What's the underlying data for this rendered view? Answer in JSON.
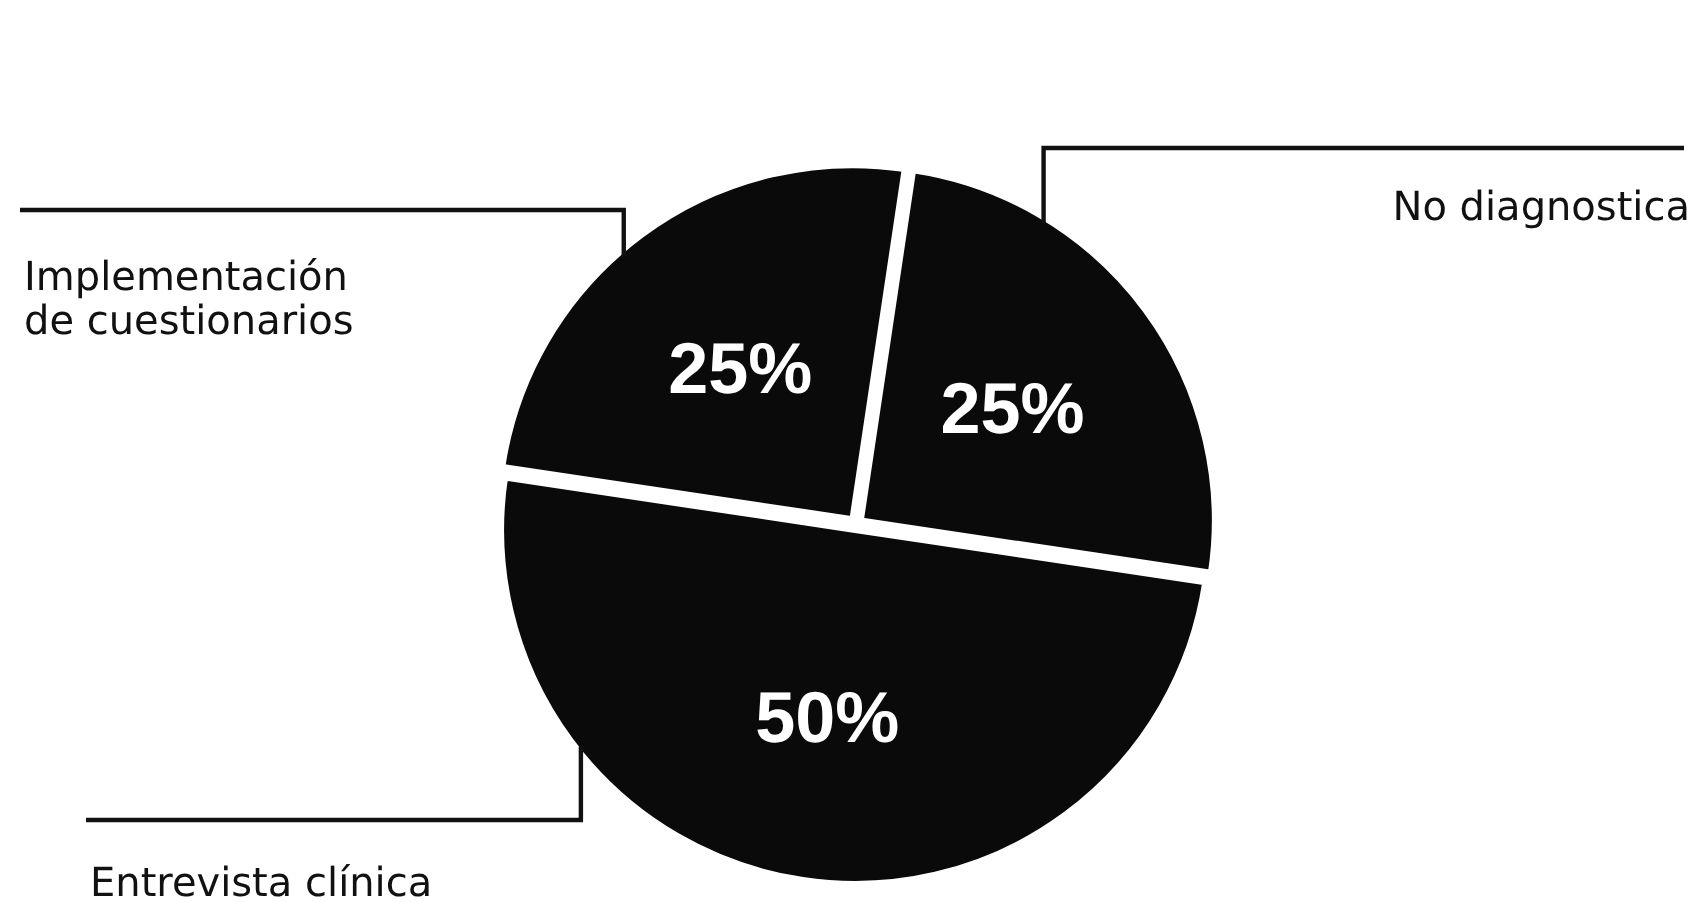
{
  "chart_data": {
    "type": "pie",
    "categories": [
      "Entrevista clínica",
      "Implementación de cuestionarios",
      "No diagnostica"
    ],
    "values": [
      50,
      25,
      25
    ],
    "value_labels": [
      "50%",
      "25%",
      "25%"
    ],
    "colors": [
      "#0a0a0a",
      "#0a0a0a",
      "#0a0a0a"
    ]
  }
}
